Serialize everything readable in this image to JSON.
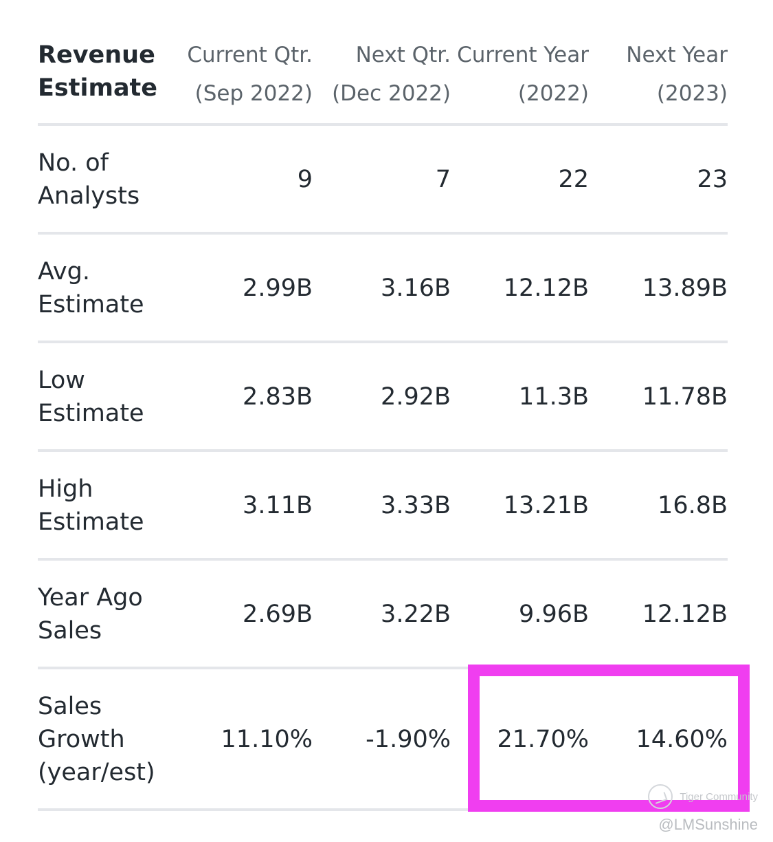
{
  "table": {
    "header": {
      "title_line1": "Revenue",
      "title_line2": "Estimate",
      "columns": [
        {
          "line1": "Current Qtr.",
          "line2": "(Sep 2022)"
        },
        {
          "line1": "Next Qtr.",
          "line2": "(Dec 2022)"
        },
        {
          "line1": "Current Year",
          "line2": "(2022)"
        },
        {
          "line1": "Next Year",
          "line2": "(2023)"
        }
      ]
    },
    "rows": [
      {
        "label_line1": "No. of",
        "label_line2": "Analysts",
        "label_line3": "",
        "values": [
          "9",
          "7",
          "22",
          "23"
        ]
      },
      {
        "label_line1": "Avg.",
        "label_line2": "Estimate",
        "label_line3": "",
        "values": [
          "2.99B",
          "3.16B",
          "12.12B",
          "13.89B"
        ]
      },
      {
        "label_line1": "Low",
        "label_line2": "Estimate",
        "label_line3": "",
        "values": [
          "2.83B",
          "2.92B",
          "11.3B",
          "11.78B"
        ]
      },
      {
        "label_line1": "High",
        "label_line2": "Estimate",
        "label_line3": "",
        "values": [
          "3.11B",
          "3.33B",
          "13.21B",
          "16.8B"
        ]
      },
      {
        "label_line1": "Year Ago",
        "label_line2": "Sales",
        "label_line3": "",
        "values": [
          "2.69B",
          "3.22B",
          "9.96B",
          "12.12B"
        ]
      },
      {
        "label_line1": "Sales",
        "label_line2": "Growth",
        "label_line3": "(year/est)",
        "values": [
          "11.10%",
          "-1.90%",
          "21.70%",
          "14.60%"
        ]
      }
    ]
  },
  "highlight_color": "#f03ef0",
  "watermark": {
    "brand": "Tiger Community",
    "user": "@LMSunshine"
  }
}
